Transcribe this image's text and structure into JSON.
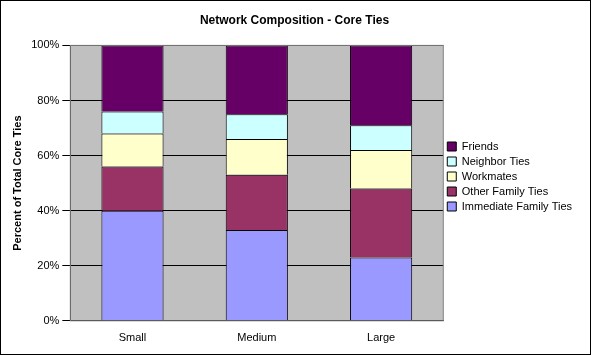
{
  "chart_data": {
    "type": "bar",
    "title": "Network Composition - Core Ties",
    "y_label": "Percent of Total Core Ties",
    "categories": [
      "Small",
      "Medium",
      "Large"
    ],
    "series": [
      {
        "name": "Immediate Family Ties",
        "color": "#9999ff",
        "values": [
          40,
          33,
          23
        ]
      },
      {
        "name": "Other Family Ties",
        "color": "#993366",
        "values": [
          16,
          20,
          25
        ]
      },
      {
        "name": "Workmates",
        "color": "#ffffcc",
        "values": [
          12,
          13,
          14
        ]
      },
      {
        "name": "Neighbor Ties",
        "color": "#ccffff",
        "values": [
          8,
          9,
          9
        ]
      },
      {
        "name": "Friends",
        "color": "#660066",
        "values": [
          24,
          25,
          29
        ]
      }
    ],
    "stacked": true,
    "ylim": [
      0,
      100
    ],
    "yticks": [
      {
        "value": 0,
        "label": "0%"
      },
      {
        "value": 20,
        "label": "20%"
      },
      {
        "value": 40,
        "label": "40%"
      },
      {
        "value": 60,
        "label": "60%"
      },
      {
        "value": 80,
        "label": "80%"
      },
      {
        "value": 100,
        "label": "100%"
      }
    ],
    "grid": true,
    "legend": "right"
  }
}
